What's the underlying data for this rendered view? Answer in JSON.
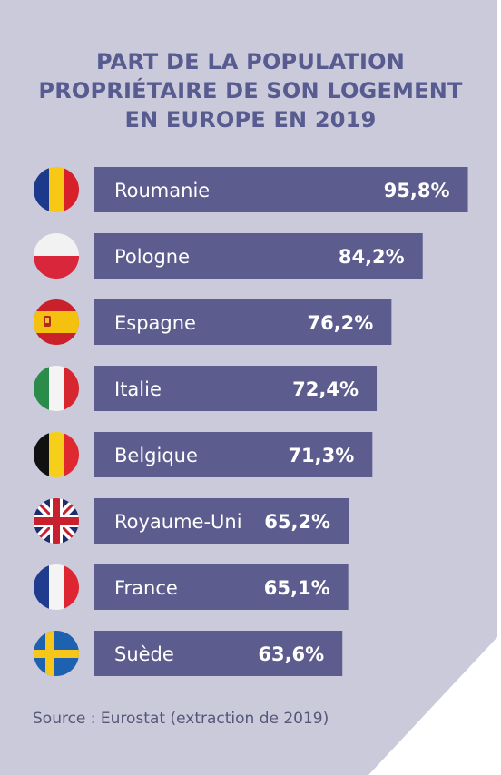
{
  "colors": {
    "background": "#cbcadb",
    "bar": "#5c5d8e",
    "title": "#575b8f",
    "bar_text": "#ffffff"
  },
  "chart_data": {
    "type": "bar",
    "orientation": "horizontal",
    "title_lines": [
      "PART DE LA POPULATION",
      "PROPRIÉTAIRE DE SON LOGEMENT",
      "EN EUROPE EN 2019"
    ],
    "categories": [
      "Roumanie",
      "Pologne",
      "Espagne",
      "Italie",
      "Belgique",
      "Royaume-Uni",
      "France",
      "Suède"
    ],
    "values": [
      95.8,
      84.2,
      76.2,
      72.4,
      71.3,
      65.2,
      65.1,
      63.6
    ],
    "value_labels": [
      "95,8%",
      "84,2%",
      "76,2%",
      "72,4%",
      "71,3%",
      "65,2%",
      "65,1%",
      "63,6%"
    ],
    "flag_icons": [
      "flag-romania-icon",
      "flag-poland-icon",
      "flag-spain-icon",
      "flag-italy-icon",
      "flag-belgium-icon",
      "flag-uk-icon",
      "flag-france-icon",
      "flag-sweden-icon"
    ],
    "source": "Source : Eurostat (extraction de 2019)"
  }
}
